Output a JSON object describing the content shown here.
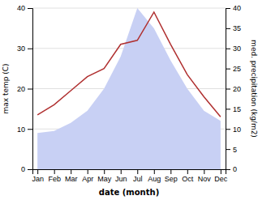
{
  "chart_data": {
    "type": "line",
    "xlabel": "date (month)",
    "ylabel": "max temp (C)",
    "y2label": "med. precipitation (kg/m2)",
    "categories": [
      "Jan",
      "Feb",
      "Mar",
      "Apr",
      "May",
      "Jun",
      "Jul",
      "Aug",
      "Sep",
      "Oct",
      "Nov",
      "Dec"
    ],
    "series": [
      {
        "type": "area",
        "axis": "y2",
        "color": "#c8d0f4",
        "values": [
          9.0,
          9.5,
          11.5,
          14.5,
          20.0,
          28.0,
          40.0,
          35.0,
          27.0,
          20.0,
          14.5,
          12.0
        ]
      },
      {
        "type": "line",
        "color": "#b03030",
        "values": [
          13.5,
          16.0,
          19.5,
          23.0,
          25.0,
          31.0,
          32.0,
          39.0,
          31.0,
          23.5,
          18.0,
          13.0
        ]
      }
    ],
    "ylim": [
      0,
      40
    ],
    "yticks": [
      0,
      10,
      20,
      30,
      40
    ],
    "y2lim": [
      0,
      40
    ],
    "y2ticks": [
      0,
      5,
      10,
      15,
      20,
      25,
      30,
      35,
      40
    ],
    "grid": true
  }
}
